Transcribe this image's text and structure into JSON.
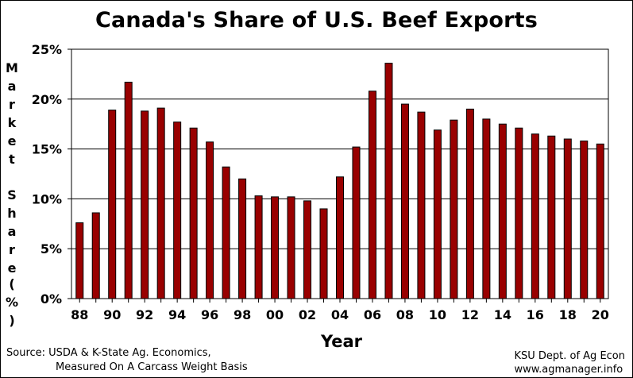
{
  "chart_data": {
    "type": "bar",
    "title": "Canada's Share of U.S. Beef Exports",
    "xlabel": "Year",
    "ylabel": "Market Share (%)",
    "ylim": [
      0,
      25
    ],
    "yticks": [
      "0%",
      "5%",
      "10%",
      "15%",
      "20%",
      "25%"
    ],
    "grid": true,
    "bar_color": "#990000",
    "categories": [
      "88",
      "89",
      "90",
      "91",
      "92",
      "93",
      "94",
      "95",
      "96",
      "97",
      "98",
      "99",
      "00",
      "01",
      "02",
      "03",
      "04",
      "05",
      "06",
      "07",
      "08",
      "09",
      "10",
      "11",
      "12",
      "13",
      "14",
      "15",
      "16",
      "17",
      "18",
      "19",
      "20"
    ],
    "xtick_labels": [
      "88",
      "",
      "90",
      "",
      "92",
      "",
      "94",
      "",
      "96",
      "",
      "98",
      "",
      "00",
      "",
      "02",
      "",
      "04",
      "",
      "06",
      "",
      "08",
      "",
      "10",
      "",
      "12",
      "",
      "14",
      "",
      "16",
      "",
      "18",
      "",
      "20"
    ],
    "values": [
      7.6,
      8.6,
      18.9,
      21.7,
      18.8,
      19.1,
      17.7,
      17.1,
      15.7,
      13.2,
      12.0,
      10.3,
      10.2,
      10.2,
      9.8,
      9.0,
      12.2,
      15.2,
      20.8,
      23.6,
      19.5,
      18.7,
      16.9,
      17.9,
      19.0,
      18.0,
      17.5,
      17.1,
      16.5,
      16.3,
      16.0,
      15.8,
      15.5
    ]
  },
  "ylabel_words": {
    "market": [
      "M",
      "a",
      "r",
      "k",
      "e",
      "t"
    ],
    "share": [
      "S",
      "h",
      "a",
      "r",
      "e"
    ],
    "pct": [
      "(",
      "%",
      ")"
    ]
  },
  "footer": {
    "source_line1": "Source:  USDA & K-State Ag. Economics,",
    "source_line2": "Measured On A Carcass Weight Basis",
    "credit_line1": "KSU Dept. of Ag Econ",
    "credit_line2": "www.agmanager.info"
  }
}
